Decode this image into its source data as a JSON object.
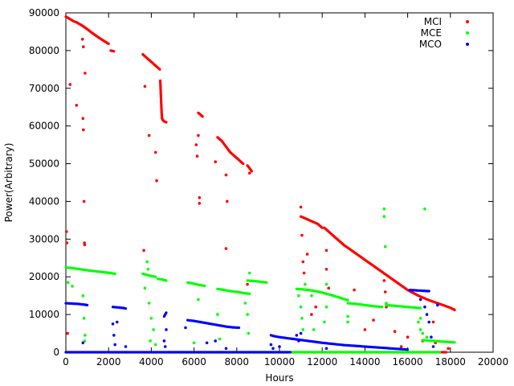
{
  "chart_data": {
    "type": "scatter",
    "title": "",
    "xlabel": "Hours",
    "ylabel": "Power(Arbitrary)",
    "xlim": [
      0,
      20000
    ],
    "ylim": [
      0,
      90000
    ],
    "x_ticks": [
      0,
      2000,
      4000,
      6000,
      8000,
      10000,
      12000,
      14000,
      16000,
      18000,
      20000
    ],
    "y_ticks": [
      0,
      10000,
      20000,
      30000,
      40000,
      50000,
      60000,
      70000,
      80000,
      90000
    ],
    "grid": false,
    "legend_position": "top-right",
    "series": [
      {
        "name": "MCI",
        "color": "#ff0000",
        "segments": [
          {
            "x": [
              0,
              300,
              350,
              500,
              800,
              1000,
              1200,
              1400,
              1600,
              1800,
              2000
            ],
            "y": [
              89000,
              88000,
              87800,
              87500,
              86500,
              85700,
              84800,
              84000,
              83200,
              82500,
              81800
            ]
          },
          {
            "x": [
              2100,
              2250
            ],
            "y": [
              80000,
              79800
            ]
          },
          {
            "x": [
              3600,
              3800,
              4000,
              4200,
              4400
            ],
            "y": [
              79000,
              78000,
              77000,
              76000,
              75000
            ]
          },
          {
            "x": [
              4420,
              4450,
              4480,
              4500,
              4550,
              4600,
              4700
            ],
            "y": [
              72000,
              68000,
              64000,
              62000,
              61500,
              61200,
              61000
            ]
          },
          {
            "x": [
              6200,
              6300,
              6400
            ],
            "y": [
              63500,
              63000,
              62500
            ]
          },
          {
            "x": [
              7100,
              7300,
              7500,
              7700,
              7900,
              8100,
              8300
            ],
            "y": [
              57000,
              56000,
              54500,
              53000,
              52000,
              51000,
              50000
            ]
          },
          {
            "x": [
              8500,
              8600,
              8700
            ],
            "y": [
              49500,
              48800,
              48000
            ]
          },
          {
            "x": [
              11000,
              11200,
              11400,
              11600,
              11800,
              12000
            ],
            "y": [
              36000,
              35500,
              35000,
              34500,
              34000,
              33000
            ]
          },
          {
            "x": [
              12100,
              12500,
              13000,
              13500,
              14000,
              14500,
              15000,
              15500,
              16000,
              16500,
              17000,
              17500,
              18000,
              18200
            ],
            "y": [
              33000,
              31000,
              28500,
              26500,
              24500,
              22500,
              20500,
              18500,
              16500,
              15000,
              13800,
              12800,
              11800,
              11200
            ]
          },
          {
            "x": [
              0,
              800,
              4400,
              6100,
              8500,
              11000,
              12100,
              13300,
              14900,
              16500,
              17800
            ],
            "y": [
              0,
              0,
              0,
              0,
              0,
              0,
              0,
              0,
              0,
              0,
              0
            ]
          }
        ],
        "outliers": [
          {
            "x": 30,
            "y": 32000
          },
          {
            "x": 50,
            "y": 29000
          },
          {
            "x": 80,
            "y": 5000
          },
          {
            "x": 200,
            "y": 71000
          },
          {
            "x": 500,
            "y": 65500
          },
          {
            "x": 800,
            "y": 62000
          },
          {
            "x": 820,
            "y": 59000
          },
          {
            "x": 850,
            "y": 40000
          },
          {
            "x": 870,
            "y": 29000
          },
          {
            "x": 880,
            "y": 28500
          },
          {
            "x": 900,
            "y": 74000
          },
          {
            "x": 780,
            "y": 83000
          },
          {
            "x": 820,
            "y": 81000
          },
          {
            "x": 3700,
            "y": 70500
          },
          {
            "x": 3650,
            "y": 27000
          },
          {
            "x": 3900,
            "y": 57500
          },
          {
            "x": 4200,
            "y": 53000
          },
          {
            "x": 4250,
            "y": 45500
          },
          {
            "x": 6100,
            "y": 55000
          },
          {
            "x": 6150,
            "y": 52000
          },
          {
            "x": 6200,
            "y": 57500
          },
          {
            "x": 6250,
            "y": 41000
          },
          {
            "x": 6250,
            "y": 39500
          },
          {
            "x": 7000,
            "y": 50500
          },
          {
            "x": 7500,
            "y": 47000
          },
          {
            "x": 7550,
            "y": 40000
          },
          {
            "x": 7500,
            "y": 27500
          },
          {
            "x": 8500,
            "y": 18000
          },
          {
            "x": 8600,
            "y": 47500
          },
          {
            "x": 11000,
            "y": 38500
          },
          {
            "x": 11050,
            "y": 31000
          },
          {
            "x": 11100,
            "y": 24000
          },
          {
            "x": 11150,
            "y": 21000
          },
          {
            "x": 11300,
            "y": 26000
          },
          {
            "x": 11500,
            "y": 10000
          },
          {
            "x": 11700,
            "y": 12000
          },
          {
            "x": 12200,
            "y": 22000
          },
          {
            "x": 12300,
            "y": 17000
          },
          {
            "x": 12200,
            "y": 27000
          },
          {
            "x": 13500,
            "y": 16500
          },
          {
            "x": 14000,
            "y": 6000
          },
          {
            "x": 14400,
            "y": 8500
          },
          {
            "x": 14900,
            "y": 19000
          },
          {
            "x": 14950,
            "y": 16000
          },
          {
            "x": 15000,
            "y": 12000
          },
          {
            "x": 15400,
            "y": 5500
          },
          {
            "x": 15700,
            "y": 1500
          },
          {
            "x": 16000,
            "y": 4000
          },
          {
            "x": 16700,
            "y": 3000
          },
          {
            "x": 17200,
            "y": 8000
          },
          {
            "x": 17300,
            "y": 2500
          },
          {
            "x": 17900,
            "y": 1000
          }
        ]
      },
      {
        "name": "MCE",
        "color": "#00ff00",
        "segments": [
          {
            "x": [
              0,
              300,
              600,
              900,
              1200,
              1500,
              1800,
              2100,
              2300
            ],
            "y": [
              22500,
              22300,
              22100,
              21800,
              21600,
              21400,
              21200,
              21000,
              20800
            ]
          },
          {
            "x": [
              3600,
              3800,
              4000,
              4200
            ],
            "y": [
              20800,
              20500,
              20200,
              20000
            ]
          },
          {
            "x": [
              4300,
              4500,
              4700
            ],
            "y": [
              19500,
              19300,
              19000
            ]
          },
          {
            "x": [
              5700,
              5900,
              6100,
              6300,
              6500
            ],
            "y": [
              18500,
              18300,
              18000,
              17800,
              17600
            ]
          },
          {
            "x": [
              7100,
              7400,
              7700,
              8000,
              8300,
              8600
            ],
            "y": [
              16800,
              16500,
              16200,
              16000,
              15700,
              15500
            ]
          },
          {
            "x": [
              8500,
              8800,
              9100,
              9400
            ],
            "y": [
              19000,
              18900,
              18700,
              18500
            ]
          },
          {
            "x": [
              10800,
              11200,
              11600,
              12000,
              12400,
              12800,
              13200
            ],
            "y": [
              16800,
              16600,
              16300,
              15800,
              15200,
              14500,
              13800
            ]
          },
          {
            "x": [
              13200,
              13600,
              14000,
              14400,
              14800
            ],
            "y": [
              13000,
              12800,
              12500,
              12200,
              12000
            ]
          },
          {
            "x": [
              15000,
              15400,
              15800,
              16200,
              16600
            ],
            "y": [
              12500,
              12300,
              12100,
              11900,
              11700
            ]
          },
          {
            "x": [
              16700,
              17200,
              17700,
              18200
            ],
            "y": [
              3200,
              3000,
              2800,
              2600
            ]
          },
          {
            "x": [
              4800,
              5200,
              5600,
              9000,
              9400,
              13800,
              17500
            ],
            "y": [
              0,
              0,
              0,
              0,
              0,
              0,
              0
            ]
          }
        ],
        "outliers": [
          {
            "x": 100,
            "y": 18500
          },
          {
            "x": 300,
            "y": 17500
          },
          {
            "x": 800,
            "y": 15000
          },
          {
            "x": 850,
            "y": 9000
          },
          {
            "x": 900,
            "y": 4500
          },
          {
            "x": 880,
            "y": 3000
          },
          {
            "x": 3700,
            "y": 17000
          },
          {
            "x": 3800,
            "y": 24000
          },
          {
            "x": 3850,
            "y": 22000
          },
          {
            "x": 3900,
            "y": 13000
          },
          {
            "x": 4000,
            "y": 9000
          },
          {
            "x": 4100,
            "y": 6000
          },
          {
            "x": 3950,
            "y": 3000
          },
          {
            "x": 4200,
            "y": 2000
          },
          {
            "x": 6200,
            "y": 14000
          },
          {
            "x": 6300,
            "y": 8000
          },
          {
            "x": 6000,
            "y": 2500
          },
          {
            "x": 7100,
            "y": 10000
          },
          {
            "x": 7200,
            "y": 3500
          },
          {
            "x": 8400,
            "y": 13000
          },
          {
            "x": 8500,
            "y": 10000
          },
          {
            "x": 8550,
            "y": 5000
          },
          {
            "x": 8600,
            "y": 21000
          },
          {
            "x": 10900,
            "y": 15000
          },
          {
            "x": 11000,
            "y": 12000
          },
          {
            "x": 11050,
            "y": 9000
          },
          {
            "x": 11100,
            "y": 6000
          },
          {
            "x": 11200,
            "y": 18000
          },
          {
            "x": 11500,
            "y": 15000
          },
          {
            "x": 11600,
            "y": 6000
          },
          {
            "x": 12100,
            "y": 8000
          },
          {
            "x": 12200,
            "y": 18000
          },
          {
            "x": 12200,
            "y": 12000
          },
          {
            "x": 13200,
            "y": 8000
          },
          {
            "x": 13200,
            "y": 9500
          },
          {
            "x": 14900,
            "y": 38000
          },
          {
            "x": 14900,
            "y": 36000
          },
          {
            "x": 14950,
            "y": 28000
          },
          {
            "x": 15000,
            "y": 13000
          },
          {
            "x": 16500,
            "y": 8000
          },
          {
            "x": 16600,
            "y": 6000
          },
          {
            "x": 16700,
            "y": 5000
          },
          {
            "x": 16800,
            "y": 38000
          },
          {
            "x": 16900,
            "y": 4000
          },
          {
            "x": 16600,
            "y": 9000
          }
        ]
      },
      {
        "name": "MCO",
        "color": "#0000ff",
        "segments": [
          {
            "x": [
              0,
              300,
              600,
              900,
              1000
            ],
            "y": [
              13000,
              12900,
              12800,
              12600,
              12500
            ]
          },
          {
            "x": [
              2200,
              2400,
              2600,
              2800
            ],
            "y": [
              12000,
              11900,
              11800,
              11600
            ]
          },
          {
            "x": [
              4600,
              4700
            ],
            "y": [
              9500,
              10500
            ]
          },
          {
            "x": [
              5700,
              6000,
              6300,
              6600,
              6900,
              7200,
              7500,
              7800,
              8100
            ],
            "y": [
              8500,
              8300,
              8000,
              7700,
              7400,
              7100,
              6800,
              6600,
              6500
            ]
          },
          {
            "x": [
              9600,
              9800,
              10000,
              10400,
              10800,
              11200,
              11600,
              12000,
              12500,
              13000,
              13500,
              14000,
              14500,
              15000,
              15500,
              16000
            ],
            "y": [
              4500,
              4200,
              4000,
              3700,
              3400,
              3100,
              2800,
              2500,
              2200,
              1900,
              1700,
              1500,
              1300,
              1100,
              900,
              700
            ]
          },
          {
            "x": [
              16100,
              16400,
              16700,
              17000
            ],
            "y": [
              16500,
              16400,
              16300,
              16200
            ]
          },
          {
            "x": [
              0,
              1000,
              2000,
              3000,
              3600,
              4500,
              5500,
              6500,
              7500,
              8500,
              9500,
              10500
            ],
            "y": [
              0,
              0,
              0,
              0,
              0,
              0,
              0,
              0,
              0,
              0,
              0,
              0
            ]
          }
        ],
        "outliers": [
          {
            "x": 800,
            "y": 2500
          },
          {
            "x": 2200,
            "y": 7500
          },
          {
            "x": 2250,
            "y": 4500
          },
          {
            "x": 2300,
            "y": 2000
          },
          {
            "x": 2400,
            "y": 8000
          },
          {
            "x": 2800,
            "y": 1500
          },
          {
            "x": 4600,
            "y": 3000
          },
          {
            "x": 4650,
            "y": 1500
          },
          {
            "x": 4700,
            "y": 6000
          },
          {
            "x": 5600,
            "y": 6500
          },
          {
            "x": 6600,
            "y": 2500
          },
          {
            "x": 7000,
            "y": 3000
          },
          {
            "x": 7500,
            "y": 1000
          },
          {
            "x": 9600,
            "y": 2000
          },
          {
            "x": 9700,
            "y": 1000
          },
          {
            "x": 10000,
            "y": 1500
          },
          {
            "x": 10800,
            "y": 4500
          },
          {
            "x": 10900,
            "y": 3000
          },
          {
            "x": 11000,
            "y": 5000
          },
          {
            "x": 12200,
            "y": 1000
          },
          {
            "x": 16600,
            "y": 14000
          },
          {
            "x": 16800,
            "y": 12000
          },
          {
            "x": 16900,
            "y": 10000
          },
          {
            "x": 17000,
            "y": 8000
          },
          {
            "x": 17100,
            "y": 4000
          },
          {
            "x": 17200,
            "y": 1500
          },
          {
            "x": 17400,
            "y": 12500
          }
        ]
      }
    ]
  }
}
